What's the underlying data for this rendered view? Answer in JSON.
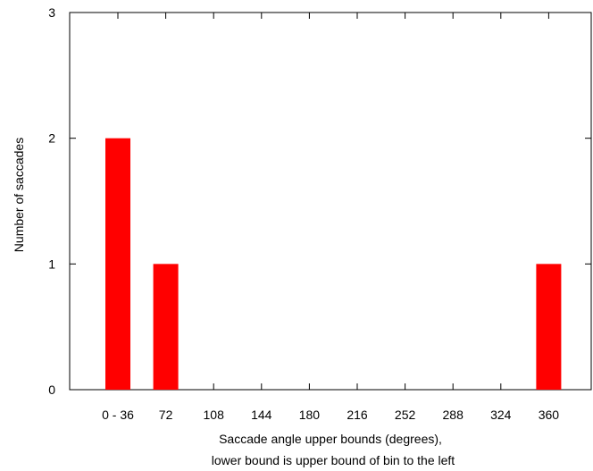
{
  "chart_data": {
    "type": "bar",
    "categories": [
      "0 - 36",
      "72",
      "108",
      "144",
      "180",
      "216",
      "252",
      "288",
      "324",
      "360"
    ],
    "values": [
      2,
      1,
      0,
      0,
      0,
      0,
      0,
      0,
      0,
      1
    ],
    "ylim": [
      0,
      3
    ],
    "yticks": [
      "0",
      "1",
      "2",
      "3"
    ],
    "xlabel_line1": "Saccade angle upper bounds (degrees),",
    "xlabel_line2": "lower bound is upper bound of bin to the left",
    "ylabel": "Number of saccades",
    "bar_color": "#ff0000",
    "grid": false
  }
}
